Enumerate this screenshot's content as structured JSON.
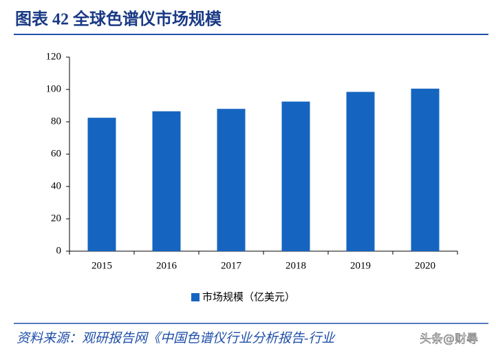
{
  "chart_data": {
    "type": "bar",
    "title": "图表 42  全球色谱仪市场规模",
    "categories": [
      "2015",
      "2016",
      "2017",
      "2018",
      "2019",
      "2020"
    ],
    "series": [
      {
        "name": "市场规模（亿美元）",
        "color": "#1565c0",
        "values": [
          82.5,
          86.5,
          88,
          92.5,
          98.5,
          100.5
        ]
      }
    ],
    "ylim": [
      0,
      120
    ],
    "yticks": [
      0,
      20,
      40,
      60,
      80,
      100,
      120
    ],
    "source": "资料来源：观研报告网《中国色谱仪行业分析报告-行业",
    "watermark": "头条@财尋"
  }
}
